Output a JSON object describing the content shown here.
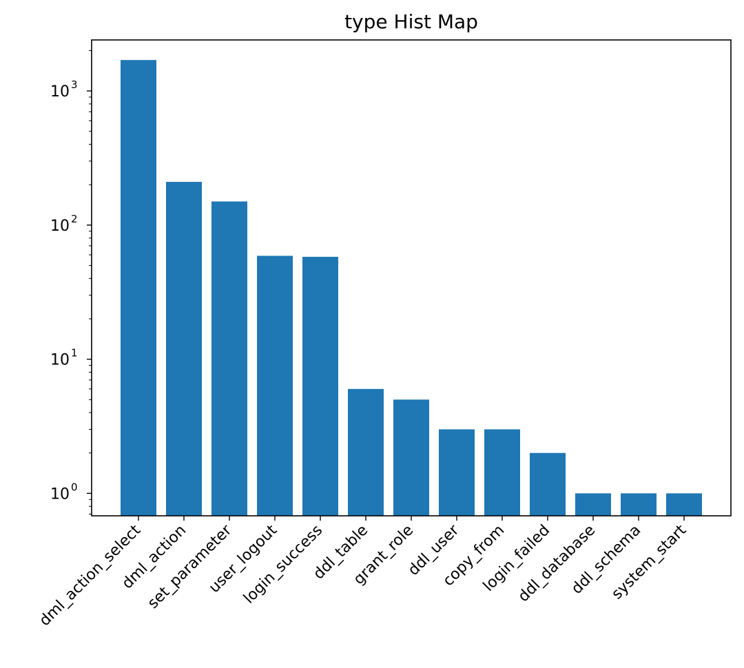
{
  "chart_data": {
    "type": "bar",
    "title": "type Hist Map",
    "xlabel": "",
    "ylabel": "",
    "yscale": "log",
    "ylim": [
      0.68,
      2400
    ],
    "grid": false,
    "bar_color": "#1f77b4",
    "categories": [
      "dml_action_select",
      "dml_action",
      "set_parameter",
      "user_logout",
      "login_success",
      "ddl_table",
      "grant_role",
      "ddl_user",
      "copy_from",
      "login_failed",
      "ddl_database",
      "ddl_schema",
      "system_start"
    ],
    "values": [
      1700,
      210,
      150,
      59,
      58,
      6,
      5,
      3,
      3,
      2,
      1,
      1,
      1
    ],
    "yticks": [
      {
        "base": "10",
        "exp": "0",
        "value": 1
      },
      {
        "base": "10",
        "exp": "1",
        "value": 10
      },
      {
        "base": "10",
        "exp": "2",
        "value": 100
      },
      {
        "base": "10",
        "exp": "3",
        "value": 1000
      }
    ]
  }
}
